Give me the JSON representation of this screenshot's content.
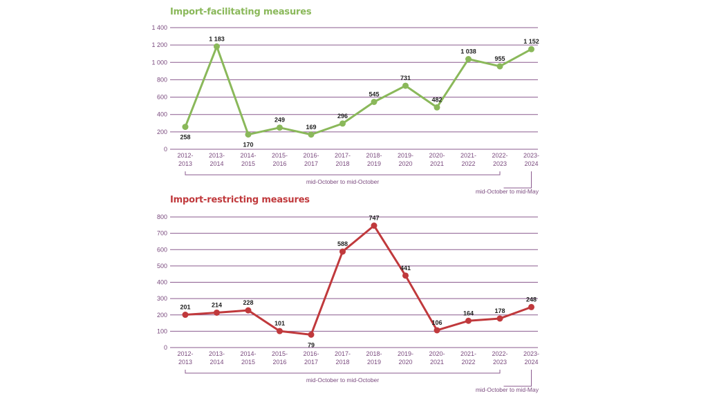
{
  "charts": [
    {
      "title": "Import-facilitating measures",
      "period_main": "mid-October to mid-October",
      "period_last": "mid-October to mid-May"
    },
    {
      "title": "Import-restricting measures",
      "period_main": "mid-October to mid-October",
      "period_last": "mid-October to mid-May"
    }
  ],
  "colors": {
    "facilitating": "#8ab85a",
    "restricting": "#c0393c",
    "grid": "#8a5a8e",
    "axis_text": "#7a4a7e",
    "value_text": "#222222"
  },
  "chart_data": [
    {
      "type": "line",
      "title": "Import-facilitating measures",
      "categories": [
        "2012-2013",
        "2013-2014",
        "2014-2015",
        "2015-2016",
        "2016-2017",
        "2017-2018",
        "2018-2019",
        "2019-2020",
        "2020-2021",
        "2021-2022",
        "2022-2023",
        "2023-2024"
      ],
      "x_tick_lines": [
        [
          "2012-",
          "2013"
        ],
        [
          "2013-",
          "2014"
        ],
        [
          "2014-",
          "2015"
        ],
        [
          "2015-",
          "2016"
        ],
        [
          "2016-",
          "2017"
        ],
        [
          "2017-",
          "2018"
        ],
        [
          "2018-",
          "2019"
        ],
        [
          "2019-",
          "2020"
        ],
        [
          "2020-",
          "2021"
        ],
        [
          "2021-",
          "2022"
        ],
        [
          "2022-",
          "2023"
        ],
        [
          "2023-",
          "2024"
        ]
      ],
      "values": [
        258,
        1183,
        170,
        249,
        169,
        296,
        545,
        731,
        482,
        1038,
        955,
        1152
      ],
      "value_labels": [
        "258",
        "1 183",
        "170",
        "249",
        "169",
        "296",
        "545",
        "731",
        "482",
        "1 038",
        "955",
        "1 152"
      ],
      "label_positions": [
        "below",
        "above",
        "below",
        "above",
        "above",
        "above",
        "above",
        "above",
        "above",
        "above",
        "above",
        "above"
      ],
      "ylim": [
        0,
        1400
      ],
      "yticks": [
        0,
        200,
        400,
        600,
        800,
        1000,
        1200,
        1400
      ],
      "ytick_labels": [
        "0",
        "200",
        "400",
        "600",
        "800",
        "1 000",
        "1 200",
        "1 400"
      ],
      "grid": true,
      "color": "#8ab85a"
    },
    {
      "type": "line",
      "title": "Import-restricting measures",
      "categories": [
        "2012-2013",
        "2013-2014",
        "2014-2015",
        "2015-2016",
        "2016-2017",
        "2017-2018",
        "2018-2019",
        "2019-2020",
        "2020-2021",
        "2021-2022",
        "2022-2023",
        "2023-2024"
      ],
      "x_tick_lines": [
        [
          "2012-",
          "2013"
        ],
        [
          "2013-",
          "2014"
        ],
        [
          "2014-",
          "2015"
        ],
        [
          "2015-",
          "2016"
        ],
        [
          "2016-",
          "2017"
        ],
        [
          "2017-",
          "2018"
        ],
        [
          "2018-",
          "2019"
        ],
        [
          "2019-",
          "2020"
        ],
        [
          "2020-",
          "2021"
        ],
        [
          "2021-",
          "2022"
        ],
        [
          "2022-",
          "2023"
        ],
        [
          "2023-",
          "2024"
        ]
      ],
      "values": [
        201,
        214,
        228,
        101,
        79,
        588,
        747,
        441,
        106,
        164,
        178,
        248
      ],
      "value_labels": [
        "201",
        "214",
        "228",
        "101",
        "79",
        "588",
        "747",
        "441",
        "106",
        "164",
        "178",
        "248"
      ],
      "label_positions": [
        "above",
        "above",
        "above",
        "above",
        "below",
        "above",
        "above",
        "above",
        "above",
        "above",
        "above",
        "above"
      ],
      "ylim": [
        0,
        800
      ],
      "yticks": [
        0,
        100,
        200,
        300,
        400,
        500,
        600,
        700,
        800
      ],
      "ytick_labels": [
        "0",
        "100",
        "200",
        "300",
        "400",
        "500",
        "600",
        "700",
        "800"
      ],
      "grid": true,
      "color": "#c0393c"
    }
  ]
}
